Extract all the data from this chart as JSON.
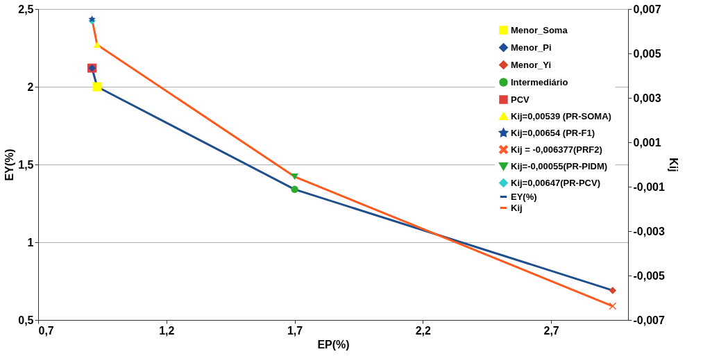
{
  "chart_data": {
    "type": "scatter",
    "xlabel": "EP(%)",
    "ylabel": "EY(%)",
    "y2label": "Kij",
    "xlim": [
      0.7,
      3.0
    ],
    "xticks": [
      {
        "value": 0.7,
        "label": "0,7"
      },
      {
        "value": 1.2,
        "label": "1,2"
      },
      {
        "value": 1.7,
        "label": "1,7"
      },
      {
        "value": 2.2,
        "label": "2,2"
      },
      {
        "value": 2.7,
        "label": "2,7"
      }
    ],
    "ylim": [
      0.5,
      2.5
    ],
    "yticks": [
      {
        "value": 0.5,
        "label": "0,5"
      },
      1,
      {
        "value": 1.5,
        "label": "1,5"
      },
      2,
      {
        "value": 2.5,
        "label": "2,5"
      }
    ],
    "y2lim": [
      -0.007,
      0.007
    ],
    "y2ticks": [
      {
        "value": -0.007,
        "label": "-0,007"
      },
      {
        "value": -0.005,
        "label": "-0,005"
      },
      {
        "value": -0.003,
        "label": "-0,003"
      },
      {
        "value": -0.001,
        "label": "-0,001"
      },
      {
        "value": 0.001,
        "label": "0,001"
      },
      {
        "value": 0.003,
        "label": "0,003"
      },
      {
        "value": 0.005,
        "label": "0,005"
      },
      {
        "value": 0.007,
        "label": "0,007"
      }
    ],
    "grid": "y",
    "legend": "top right",
    "series": [
      {
        "name": "Menor_Soma",
        "marker": "square",
        "color": "#ffff00",
        "x": [
          0.93
        ],
        "values": [
          2.0
        ]
      },
      {
        "name": "Menor_Pi",
        "marker": "diamond",
        "color": "#1f4e99",
        "x": [
          0.91
        ],
        "values": [
          2.12
        ]
      },
      {
        "name": "Menor_Yi",
        "marker": "diamond",
        "color": "#d9432b",
        "x": [
          2.94
        ],
        "values": [
          0.69
        ]
      },
      {
        "name": "Intermediário",
        "marker": "circle",
        "color": "#2eaa2e",
        "x": [
          1.7
        ],
        "values": [
          1.34
        ]
      },
      {
        "name": "PCV",
        "marker": "square",
        "color": "#e0403a",
        "x": [
          0.91
        ],
        "values": [
          2.12
        ]
      },
      {
        "name": "Kij=0,00539 (PR-SOMA)",
        "axis": "y2",
        "marker": "triangle",
        "color": "#ffff00",
        "x": [
          0.93
        ],
        "values": [
          0.00539
        ]
      },
      {
        "name": "Kij=0,00654 (PR-F1)",
        "axis": "y2",
        "marker": "star",
        "color": "#1f4e99",
        "x": [
          0.91
        ],
        "values": [
          0.00654
        ]
      },
      {
        "name": "Kij = -0,006377(PRF2)",
        "axis": "y2",
        "marker": "cross",
        "color": "#ff5a2a",
        "x": [
          2.94
        ],
        "values": [
          -0.006377
        ]
      },
      {
        "name": "Kij=-0,00055(PR-PIDM)",
        "axis": "y2",
        "marker": "triangle-down",
        "color": "#22aa33",
        "x": [
          1.7
        ],
        "values": [
          -0.00055
        ]
      },
      {
        "name": "Kij=0,00647(PR-PCV)",
        "axis": "y2",
        "marker": "diamond",
        "color": "#33cccc",
        "x": [
          0.91
        ],
        "values": [
          0.00647
        ]
      },
      {
        "name": "EY(%)",
        "type": "line",
        "marker": "none",
        "color": "#1f4e8c",
        "x": [
          0.91,
          0.93,
          1.7,
          2.94
        ],
        "values": [
          2.12,
          2.0,
          1.34,
          0.69
        ]
      },
      {
        "name": "Kij",
        "type": "line",
        "axis": "y2",
        "marker": "none",
        "color": "#ff5a1e",
        "x": [
          0.91,
          0.93,
          1.7,
          2.94
        ],
        "values": [
          0.00654,
          0.00539,
          -0.00055,
          -0.006377
        ]
      }
    ]
  }
}
